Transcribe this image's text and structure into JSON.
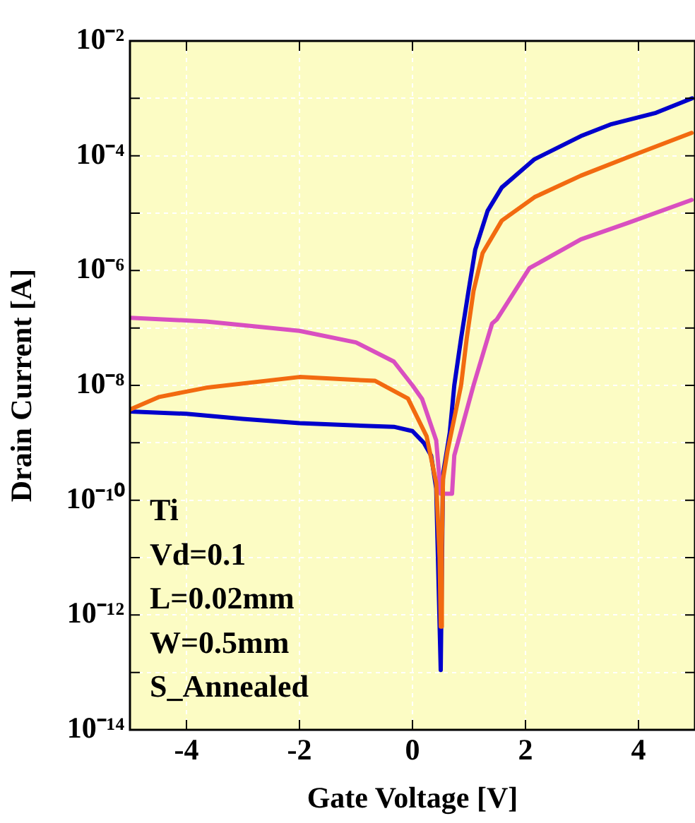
{
  "chart_data": {
    "type": "line",
    "xlabel": "Gate Voltage [V]",
    "ylabel": "Drain Current [A]",
    "log": "y",
    "grid": true,
    "legend": false,
    "xlim": [
      -5,
      5
    ],
    "xticks": [
      -4,
      -2,
      0,
      2,
      4
    ],
    "ylim": [
      1e-14,
      0.01
    ],
    "yticks": [
      {
        "value": 1e-14,
        "label": "10⁻¹⁴"
      },
      {
        "value": 1e-13,
        "label": null
      },
      {
        "value": 1e-12,
        "label": "10⁻¹²"
      },
      {
        "value": 1e-11,
        "label": null
      },
      {
        "value": 1e-10,
        "label": "10⁻¹⁰"
      },
      {
        "value": 1e-09,
        "label": null
      },
      {
        "value": 1e-08,
        "label": "10⁻⁸"
      },
      {
        "value": 1e-07,
        "label": null
      },
      {
        "value": 1e-06,
        "label": "10⁻⁶"
      },
      {
        "value": 1e-05,
        "label": null
      },
      {
        "value": 0.0001,
        "label": "10⁻⁴"
      },
      {
        "value": 0.001,
        "label": null
      },
      {
        "value": 0.01,
        "label": "10⁻²"
      }
    ],
    "annotations": [
      "Ti",
      "Vd=0.1",
      "L=0.02mm",
      "W=0.5mm",
      "S_Annealed"
    ],
    "series": [
      {
        "color": "#f26a10",
        "x": [
          -5,
          -4.48,
          -3.65,
          -2,
          -0.66,
          -0.08,
          0.25,
          0.42,
          0.48,
          0.5,
          0.52,
          0.54,
          0.62,
          0.86,
          0.96,
          1.08,
          1.24,
          1.58,
          2.16,
          2.98,
          3.82,
          4.94
        ],
        "values": [
          3.8e-09,
          6.3e-09,
          9.1e-09,
          1.4e-08,
          1.2e-08,
          5.9e-09,
          1.3e-09,
          2e-10,
          1e-11,
          6.3e-13,
          1.6e-11,
          2.3e-10,
          7.2e-10,
          1e-08,
          6.6e-08,
          4.4e-07,
          2e-06,
          7.4e-06,
          1.9e-05,
          4.5e-05,
          9.5e-05,
          0.00025
        ]
      },
      {
        "color": "#d94fc0",
        "x": [
          -5,
          -3.65,
          -2,
          -1,
          -0.33,
          0,
          0.17,
          0.42,
          0.5,
          0.7,
          0.74,
          1.08,
          1.41,
          1.49,
          2.07,
          2.98,
          3.82,
          4.94
        ],
        "values": [
          1.5e-07,
          1.3e-07,
          8.9e-08,
          5.6e-08,
          2.6e-08,
          1e-08,
          5.8e-09,
          1.1e-09,
          1.3e-10,
          1.3e-10,
          6e-10,
          1e-08,
          1.2e-07,
          1.4e-07,
          1.1e-06,
          3.5e-06,
          6.8e-06,
          1.7e-05
        ]
      },
      {
        "color": "#0000cc",
        "x": [
          -5,
          -4,
          -3,
          -2,
          -1,
          -0.33,
          0,
          0.2,
          0.33,
          0.42,
          0.5,
          0.54,
          0.66,
          0.74,
          0.86,
          0.99,
          1.11,
          1.33,
          1.58,
          2.16,
          2.98,
          3.5,
          4.31,
          4.95
        ],
        "values": [
          3.5e-09,
          3.2e-09,
          2.6e-09,
          2.2e-09,
          2e-09,
          1.9e-09,
          1.6e-09,
          1e-09,
          6e-10,
          1.6e-10,
          1.1e-13,
          2.8e-10,
          1.5e-09,
          1e-08,
          6.6e-08,
          4.3e-07,
          2.3e-06,
          1.1e-05,
          2.8e-05,
          8.7e-05,
          0.00022,
          0.00035,
          0.00056,
          0.001
        ]
      }
    ]
  }
}
